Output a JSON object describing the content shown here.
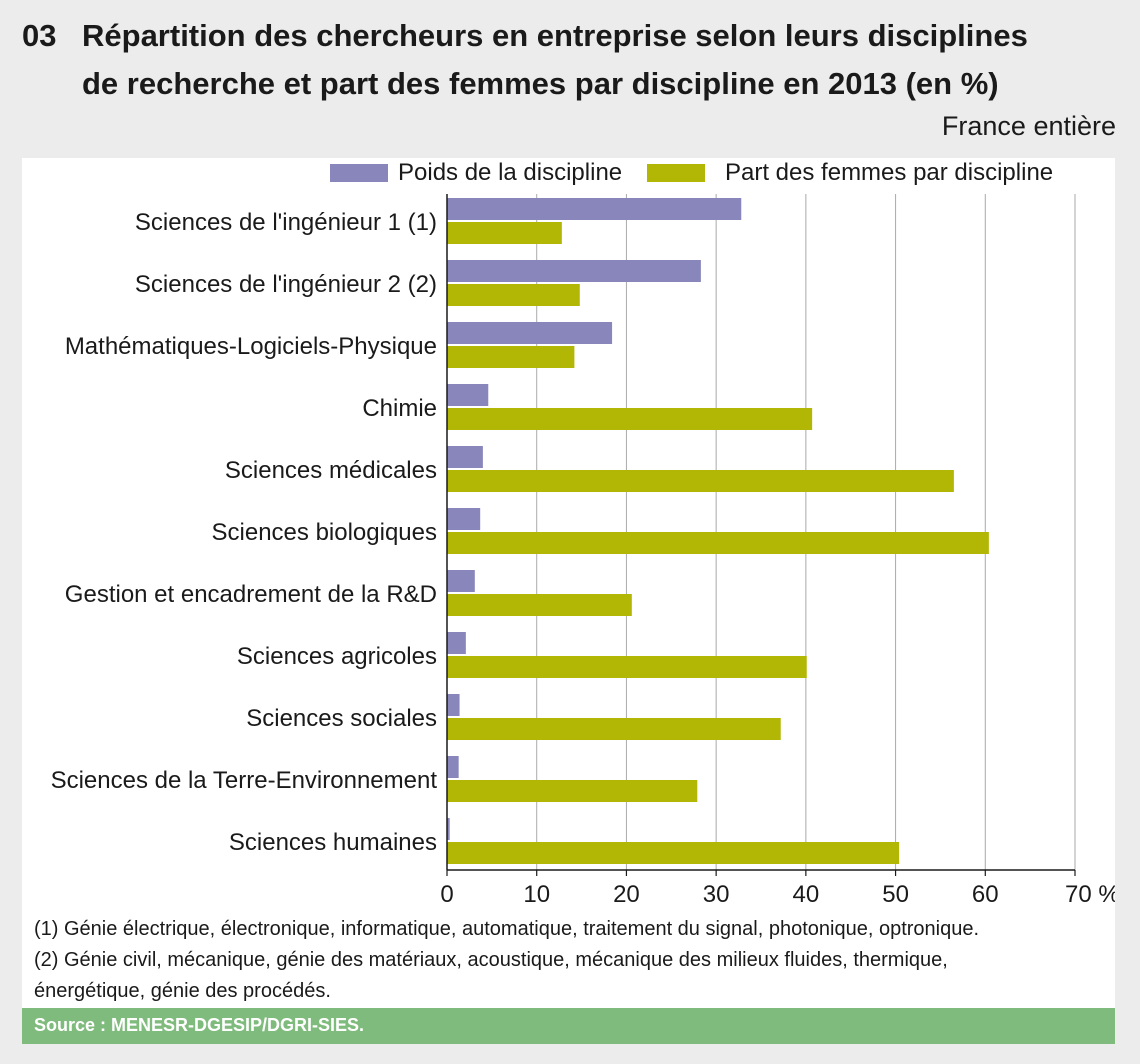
{
  "header": {
    "number": "03",
    "title_line1": "Répartition des chercheurs en entreprise selon leurs disciplines",
    "title_line2": "de recherche et part des femmes par discipline en 2013 (en %)",
    "subtitle": "France entière"
  },
  "chart_data": {
    "type": "bar",
    "orientation": "horizontal",
    "title": "Répartition des chercheurs en entreprise selon leurs disciplines de recherche et part des femmes par discipline en 2013 (en %)",
    "categories": [
      "Sciences de l'ingénieur 1 (1)",
      "Sciences de l'ingénieur 2 (2)",
      "Mathématiques-Logiciels-Physique",
      "Chimie",
      "Sciences médicales",
      "Sciences biologiques",
      "Gestion et encadrement de la R&D",
      "Sciences agricoles",
      "Sciences sociales",
      "Sciences de la Terre-Environnement",
      "Sciences humaines"
    ],
    "series": [
      {
        "name": "Poids de la discipline",
        "color": "#8886bb",
        "values": [
          32.8,
          28.3,
          18.4,
          4.6,
          4.0,
          3.7,
          3.1,
          2.1,
          1.4,
          1.3,
          0.3
        ]
      },
      {
        "name": "Part des femmes par discipline",
        "color": "#b2b706",
        "values": [
          12.8,
          14.8,
          14.2,
          40.7,
          56.5,
          60.4,
          20.6,
          40.1,
          37.2,
          27.9,
          50.4
        ]
      }
    ],
    "xlim": [
      0,
      70
    ],
    "xticks": [
      "0",
      "10",
      "20",
      "30",
      "40",
      "50",
      "60",
      "70 %"
    ],
    "xtick_values": [
      0,
      10,
      20,
      30,
      40,
      50,
      60,
      70
    ],
    "grid": true,
    "legend_position": "top"
  },
  "notes": {
    "note1": "(1) Génie électrique, électronique, informatique, automatique, traitement du signal, photonique, optronique.",
    "note2_line1": "(2) Génie civil, mécanique, génie des matériaux, acoustique, mécanique des milieux fluides, thermique,",
    "note2_line2": "énergétique, génie des procédés."
  },
  "source": "Source : MENESR-DGESIP/DGRI-SIES.",
  "colors": {
    "background": "#ececec",
    "panel": "#ffffff",
    "source_bar": "#7fbb7c",
    "grid": "#aaaaaa"
  }
}
